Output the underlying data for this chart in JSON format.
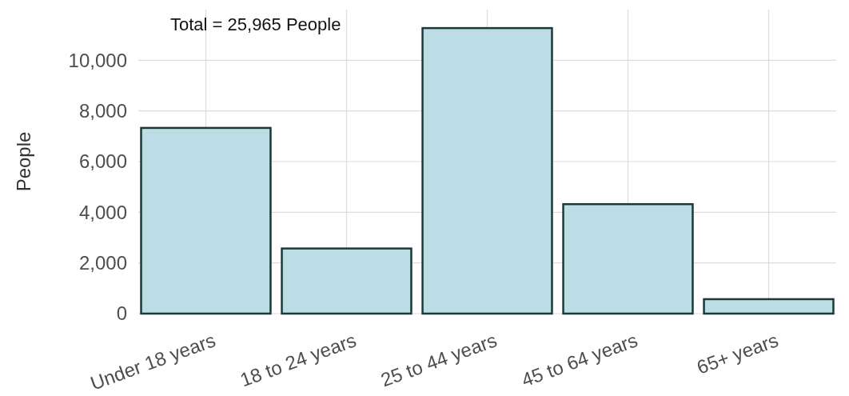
{
  "chart_data": {
    "type": "bar",
    "ylabel": "People",
    "categories": [
      "Under 18 years",
      "18 to 24 years",
      "25 to 44 years",
      "45 to 64 years",
      "65+ years"
    ],
    "values": [
      7330,
      2570,
      11270,
      4320,
      570
    ],
    "color": "#bcdde6",
    "ylim": [
      0,
      12000
    ],
    "yticks": [
      {
        "value": 0,
        "label": "0"
      },
      {
        "value": 2000,
        "label": "2,000"
      },
      {
        "value": 4000,
        "label": "4,000"
      },
      {
        "value": 6000,
        "label": "6,000"
      },
      {
        "value": 8000,
        "label": "8,000"
      },
      {
        "value": 10000,
        "label": "10,000"
      }
    ],
    "grid": true,
    "annotations": [
      "Total = 25,965  People"
    ]
  }
}
